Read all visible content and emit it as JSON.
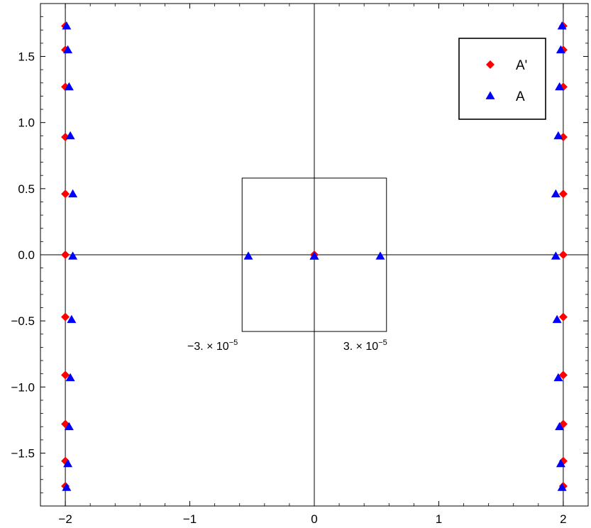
{
  "chart_data": {
    "type": "scatter",
    "xlim": [
      -2.2,
      2.2
    ],
    "ylim": [
      -1.9,
      1.9
    ],
    "x_ticks": [
      {
        "value": -2,
        "label": "−2"
      },
      {
        "value": -1,
        "label": "−1"
      },
      {
        "value": 0,
        "label": "0"
      },
      {
        "value": 1,
        "label": "1"
      },
      {
        "value": 2,
        "label": "2"
      }
    ],
    "y_ticks": [
      {
        "value": 1.5,
        "label": "1.5"
      },
      {
        "value": 1.0,
        "label": "1.0"
      },
      {
        "value": 0.5,
        "label": "0.5"
      },
      {
        "value": 0.0,
        "label": "0.0"
      },
      {
        "value": -0.5,
        "label": "−0.5"
      },
      {
        "value": -1.0,
        "label": "−1.0"
      },
      {
        "value": -1.5,
        "label": "−1.5"
      }
    ],
    "grid": false,
    "legend": {
      "placement": "top-right"
    },
    "series": [
      {
        "name": "A'",
        "marker": "diamond",
        "color": "#ff0000",
        "points": [
          [
            -2.0,
            1.73
          ],
          [
            -2.0,
            1.55
          ],
          [
            -2.0,
            1.27
          ],
          [
            -2.0,
            0.89
          ],
          [
            -2.0,
            0.46
          ],
          [
            -2.0,
            0.0
          ],
          [
            -2.0,
            -0.47
          ],
          [
            -2.0,
            -0.91
          ],
          [
            -2.0,
            -1.28
          ],
          [
            -2.0,
            -1.56
          ],
          [
            -2.0,
            -1.75
          ],
          [
            2.0,
            1.73
          ],
          [
            2.0,
            1.55
          ],
          [
            2.0,
            1.27
          ],
          [
            2.0,
            0.89
          ],
          [
            2.0,
            0.46
          ],
          [
            2.0,
            0.0
          ],
          [
            2.0,
            -0.47
          ],
          [
            2.0,
            -0.91
          ],
          [
            2.0,
            -1.28
          ],
          [
            2.0,
            -1.56
          ],
          [
            2.0,
            -1.75
          ],
          [
            0.0,
            0.0
          ]
        ]
      },
      {
        "name": "A",
        "marker": "triangle",
        "color": "#0000ff",
        "points": [
          [
            -1.99,
            1.73
          ],
          [
            -1.98,
            1.55
          ],
          [
            -1.97,
            1.27
          ],
          [
            -1.96,
            0.9
          ],
          [
            -1.94,
            0.46
          ],
          [
            -1.94,
            -0.01
          ],
          [
            -1.95,
            -0.49
          ],
          [
            -1.96,
            -0.93
          ],
          [
            -1.97,
            -1.3
          ],
          [
            -1.98,
            -1.58
          ],
          [
            -1.99,
            -1.76
          ],
          [
            1.99,
            1.73
          ],
          [
            1.98,
            1.55
          ],
          [
            1.97,
            1.27
          ],
          [
            1.96,
            0.9
          ],
          [
            1.94,
            0.46
          ],
          [
            1.94,
            -0.01
          ],
          [
            1.95,
            -0.49
          ],
          [
            1.96,
            -0.93
          ],
          [
            1.97,
            -1.3
          ],
          [
            1.98,
            -1.58
          ],
          [
            1.99,
            -1.76
          ],
          [
            0.0,
            -0.01
          ]
        ]
      }
    ],
    "inset": {
      "x_range": [
        -0.58,
        0.58
      ],
      "y_range": [
        -0.58,
        0.58
      ],
      "labels": [
        {
          "side": "left",
          "mantissa": "−3. × 10",
          "exponent": "−5"
        },
        {
          "side": "right",
          "mantissa": "3. × 10",
          "exponent": "−5"
        }
      ],
      "series": [
        {
          "name": "A'",
          "points": [
            [
              0.0,
              0.0
            ]
          ]
        },
        {
          "name": "A",
          "points": [
            [
              -0.53,
              -0.01
            ],
            [
              0.0,
              -0.01
            ],
            [
              0.53,
              -0.01
            ]
          ]
        }
      ]
    }
  }
}
